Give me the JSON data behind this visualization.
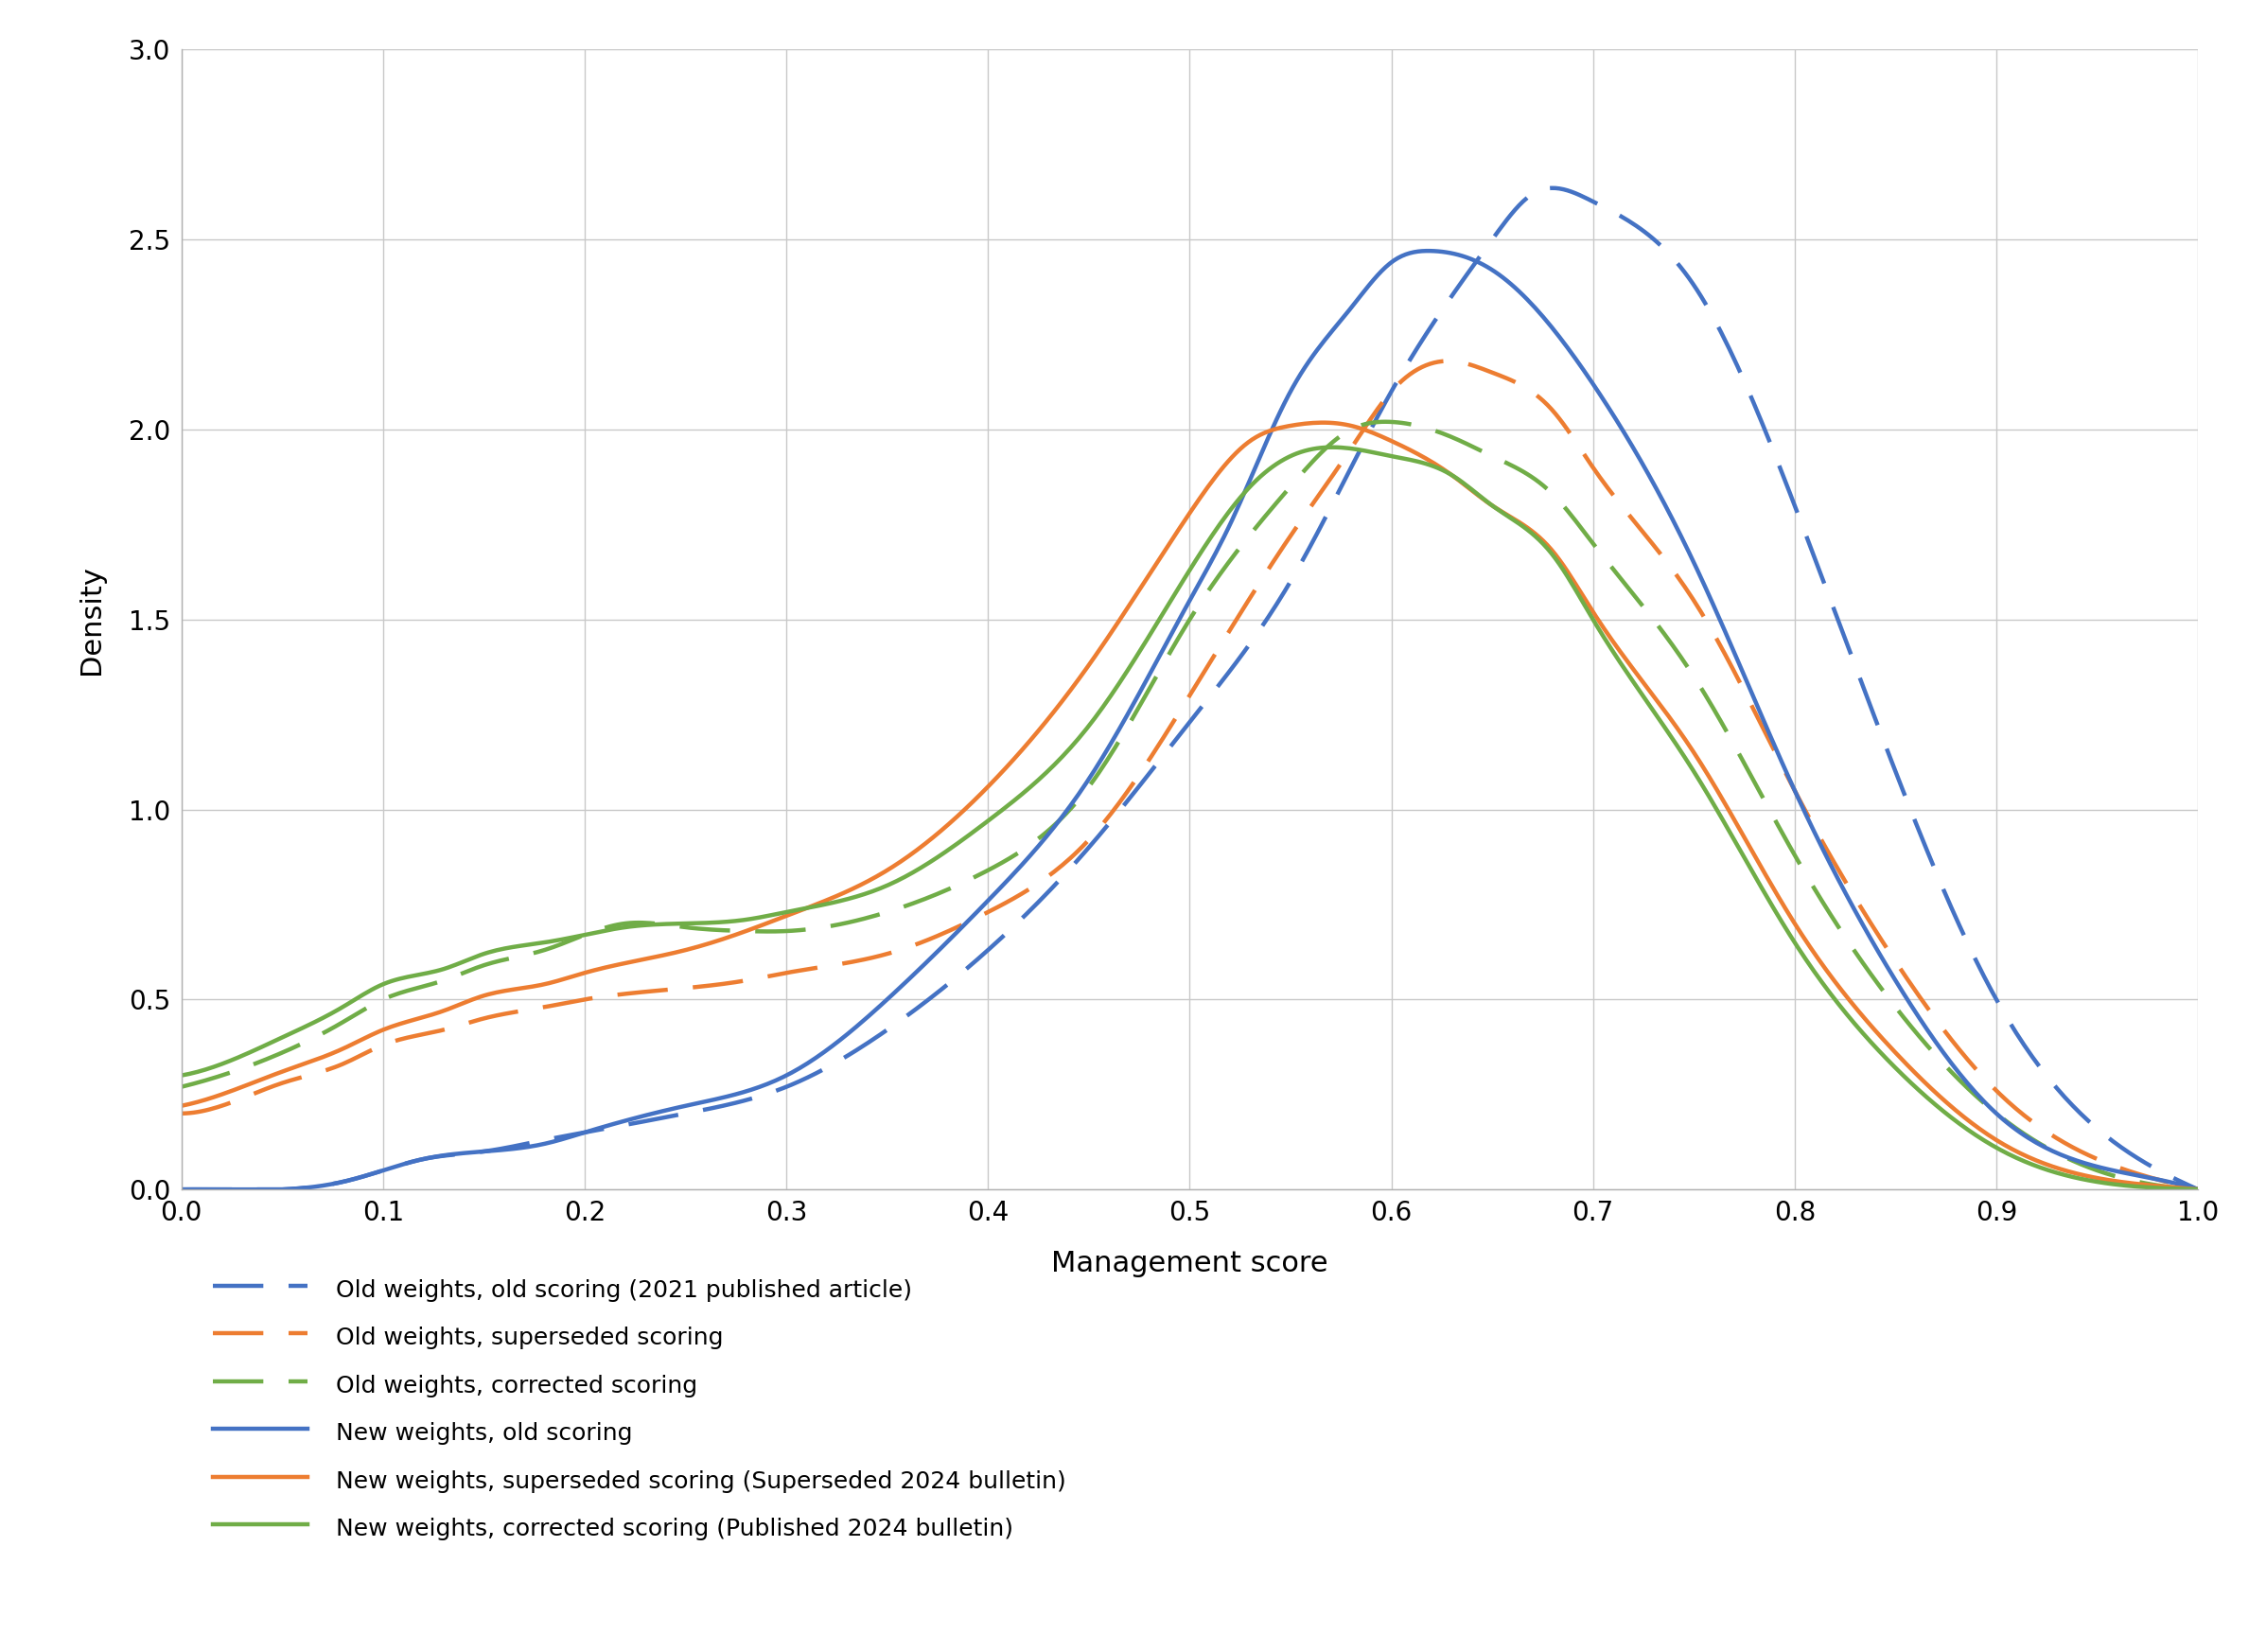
{
  "title": "",
  "xlabel": "Management score",
  "ylabel": "Density",
  "xlim": [
    0.0,
    1.0
  ],
  "ylim": [
    0.0,
    3.0
  ],
  "xticks": [
    0.0,
    0.1,
    0.2,
    0.3,
    0.4,
    0.5,
    0.6,
    0.7,
    0.8,
    0.9,
    1.0
  ],
  "yticks": [
    0.0,
    0.5,
    1.0,
    1.5,
    2.0,
    2.5,
    3.0
  ],
  "colors": {
    "blue": "#4472C4",
    "orange": "#ED7D31",
    "green": "#70AD47"
  },
  "curves": {
    "blue_dashed": {
      "label": "Old weights, old scoring (2021 published article)",
      "color": "#4472C4",
      "linestyle": "dashed",
      "x": [
        0.0,
        0.05,
        0.08,
        0.1,
        0.12,
        0.15,
        0.18,
        0.2,
        0.25,
        0.3,
        0.35,
        0.4,
        0.45,
        0.5,
        0.55,
        0.6,
        0.65,
        0.67,
        0.7,
        0.75,
        0.8,
        0.85,
        0.9,
        0.95,
        1.0
      ],
      "y": [
        0.0,
        0.0,
        0.02,
        0.05,
        0.08,
        0.1,
        0.13,
        0.15,
        0.2,
        0.27,
        0.42,
        0.63,
        0.9,
        1.23,
        1.6,
        2.1,
        2.5,
        2.62,
        2.6,
        2.38,
        1.8,
        1.1,
        0.5,
        0.16,
        0.0
      ]
    },
    "orange_dashed": {
      "label": "Old weights, superseded scoring",
      "color": "#ED7D31",
      "linestyle": "dashed",
      "x": [
        0.0,
        0.02,
        0.05,
        0.08,
        0.1,
        0.13,
        0.15,
        0.18,
        0.2,
        0.25,
        0.28,
        0.3,
        0.35,
        0.4,
        0.45,
        0.5,
        0.55,
        0.58,
        0.6,
        0.63,
        0.65,
        0.68,
        0.7,
        0.75,
        0.8,
        0.85,
        0.9,
        0.95,
        1.0
      ],
      "y": [
        0.2,
        0.22,
        0.28,
        0.33,
        0.38,
        0.42,
        0.45,
        0.48,
        0.5,
        0.53,
        0.55,
        0.57,
        0.62,
        0.73,
        0.92,
        1.3,
        1.72,
        1.95,
        2.1,
        2.18,
        2.15,
        2.05,
        1.9,
        1.55,
        1.05,
        0.6,
        0.26,
        0.08,
        0.0
      ]
    },
    "green_dashed": {
      "label": "Old weights, corrected scoring",
      "color": "#70AD47",
      "linestyle": "dashed",
      "x": [
        0.0,
        0.02,
        0.05,
        0.08,
        0.1,
        0.13,
        0.15,
        0.18,
        0.2,
        0.22,
        0.25,
        0.28,
        0.3,
        0.35,
        0.4,
        0.45,
        0.5,
        0.55,
        0.58,
        0.6,
        0.63,
        0.65,
        0.68,
        0.7,
        0.75,
        0.8,
        0.85,
        0.9,
        0.95,
        1.0
      ],
      "y": [
        0.27,
        0.3,
        0.36,
        0.44,
        0.5,
        0.55,
        0.59,
        0.63,
        0.67,
        0.7,
        0.69,
        0.68,
        0.68,
        0.73,
        0.84,
        1.06,
        1.5,
        1.85,
        2.0,
        2.02,
        1.98,
        1.93,
        1.83,
        1.7,
        1.35,
        0.88,
        0.48,
        0.2,
        0.05,
        0.0
      ]
    },
    "blue_solid": {
      "label": "New weights, old scoring",
      "color": "#4472C4",
      "linestyle": "solid",
      "x": [
        0.0,
        0.05,
        0.08,
        0.1,
        0.12,
        0.15,
        0.18,
        0.2,
        0.25,
        0.3,
        0.35,
        0.4,
        0.45,
        0.5,
        0.52,
        0.55,
        0.58,
        0.6,
        0.62,
        0.65,
        0.7,
        0.75,
        0.8,
        0.85,
        0.9,
        0.95,
        1.0
      ],
      "y": [
        0.0,
        0.0,
        0.02,
        0.05,
        0.08,
        0.1,
        0.12,
        0.15,
        0.22,
        0.3,
        0.5,
        0.76,
        1.08,
        1.55,
        1.75,
        2.1,
        2.32,
        2.44,
        2.47,
        2.42,
        2.12,
        1.65,
        1.05,
        0.55,
        0.2,
        0.06,
        0.0
      ]
    },
    "orange_solid": {
      "label": "New weights, superseded scoring (Superseded 2024 bulletin)",
      "color": "#ED7D31",
      "linestyle": "solid",
      "x": [
        0.0,
        0.02,
        0.05,
        0.08,
        0.1,
        0.13,
        0.15,
        0.18,
        0.2,
        0.25,
        0.28,
        0.3,
        0.35,
        0.4,
        0.45,
        0.5,
        0.53,
        0.55,
        0.58,
        0.6,
        0.63,
        0.65,
        0.68,
        0.7,
        0.75,
        0.8,
        0.85,
        0.9,
        0.95,
        1.0
      ],
      "y": [
        0.22,
        0.25,
        0.31,
        0.37,
        0.42,
        0.47,
        0.51,
        0.54,
        0.57,
        0.63,
        0.68,
        0.72,
        0.84,
        1.06,
        1.38,
        1.78,
        1.97,
        2.01,
        2.01,
        1.97,
        1.88,
        1.8,
        1.68,
        1.52,
        1.15,
        0.7,
        0.36,
        0.13,
        0.03,
        0.0
      ]
    },
    "green_solid": {
      "label": "New weights, corrected scoring (Published 2024 bulletin)",
      "color": "#70AD47",
      "linestyle": "solid",
      "x": [
        0.0,
        0.02,
        0.05,
        0.08,
        0.1,
        0.13,
        0.15,
        0.18,
        0.2,
        0.22,
        0.25,
        0.28,
        0.3,
        0.35,
        0.4,
        0.45,
        0.5,
        0.53,
        0.55,
        0.58,
        0.6,
        0.63,
        0.65,
        0.68,
        0.7,
        0.75,
        0.8,
        0.85,
        0.9,
        0.95,
        1.0
      ],
      "y": [
        0.3,
        0.33,
        0.4,
        0.48,
        0.54,
        0.58,
        0.62,
        0.65,
        0.67,
        0.69,
        0.7,
        0.71,
        0.73,
        0.8,
        0.97,
        1.22,
        1.63,
        1.85,
        1.93,
        1.95,
        1.93,
        1.88,
        1.8,
        1.67,
        1.5,
        1.1,
        0.65,
        0.32,
        0.11,
        0.02,
        0.0
      ]
    }
  },
  "legend_entries": [
    {
      "key": "blue_dashed",
      "label": "Old weights, old scoring (2021 published article)"
    },
    {
      "key": "orange_dashed",
      "label": "Old weights, superseded scoring"
    },
    {
      "key": "green_dashed",
      "label": "Old weights, corrected scoring"
    },
    {
      "key": "blue_solid",
      "label": "New weights, old scoring"
    },
    {
      "key": "orange_solid",
      "label": "New weights, superseded scoring (Superseded 2024 bulletin)"
    },
    {
      "key": "green_solid",
      "label": "New weights, corrected scoring (Published 2024 bulletin)"
    }
  ],
  "legend_fontsize": 18,
  "axis_label_fontsize": 22,
  "tick_fontsize": 20,
  "linewidth": 3.2,
  "background_color": "#ffffff",
  "grid_color": "#c8c8c8",
  "spine_color": "#b0b0b0"
}
